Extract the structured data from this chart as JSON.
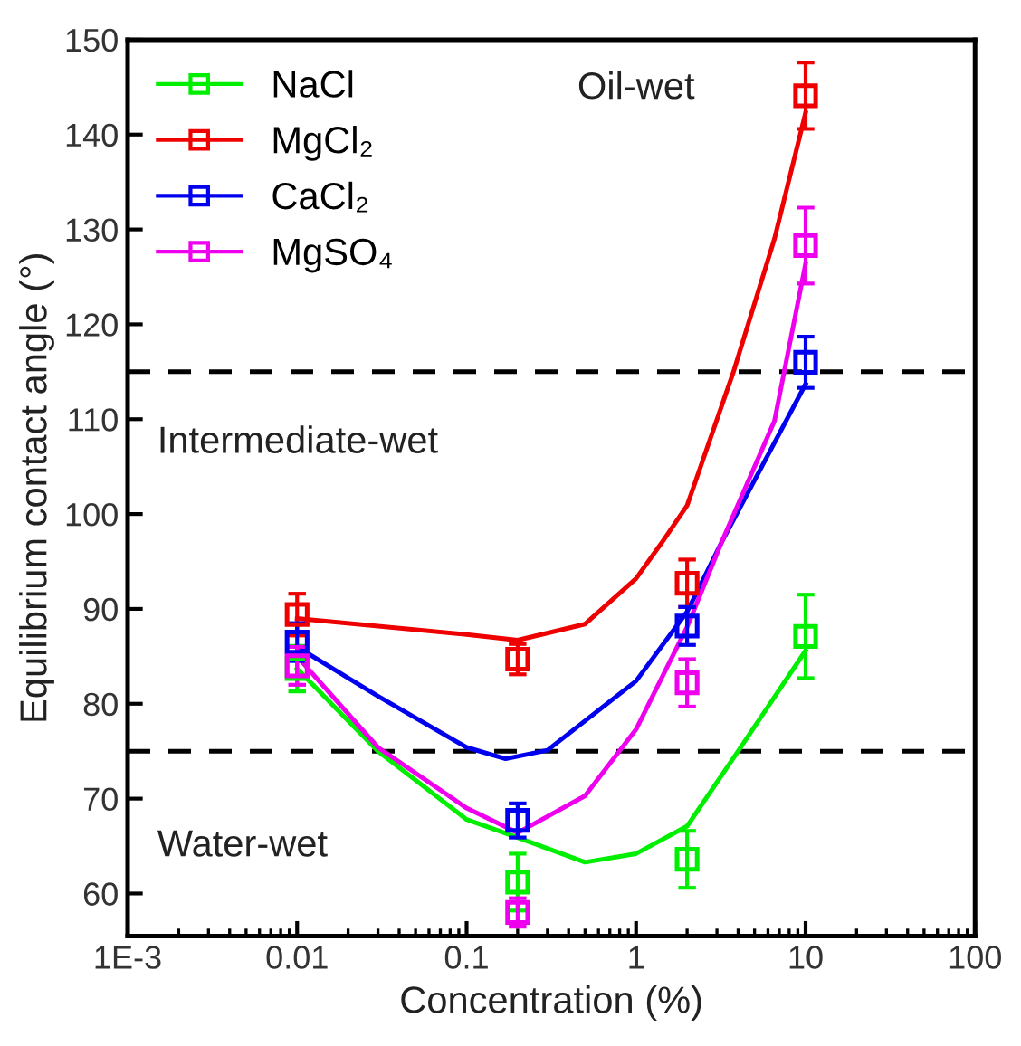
{
  "chart_data": {
    "type": "scatter",
    "xlabel": "Concentration (%)",
    "ylabel": "Equilibrium contact angle (°)",
    "log": "x",
    "xlim": [
      0.001,
      100
    ],
    "xticks": [
      {
        "value": 0.001,
        "label": "1E-3"
      },
      0.01,
      0.1,
      1,
      10,
      100
    ],
    "ylim": [
      55.5,
      150
    ],
    "yticks": [
      60,
      70,
      80,
      90,
      100,
      110,
      120,
      130,
      140,
      150
    ],
    "grid": false,
    "legend": "top left",
    "marker": "square",
    "annotations": [
      "Oil-wet",
      "Intermediate-wet",
      "Water-wet"
    ],
    "ref_lines": [
      {
        "axis": "y",
        "value": 115,
        "color": "#000000",
        "line_style": "dashed"
      },
      {
        "axis": "y",
        "value": 75,
        "color": "#000000",
        "line_style": "dashed"
      }
    ],
    "series": [
      {
        "name": "NaCl",
        "color": "#00ee00",
        "x": [
          0.01,
          0.2,
          2,
          10
        ],
        "values": [
          83.7,
          61.2,
          63.6,
          87.1
        ],
        "errors": [
          2.4,
          3,
          3,
          4.4
        ]
      },
      {
        "name": "MgCl₂",
        "color": "#ee0000",
        "x": [
          0.01,
          0.2,
          2,
          10
        ],
        "values": [
          89.4,
          84.7,
          92.7,
          144.1
        ],
        "errors": [
          2.2,
          1.6,
          2.5,
          3.5
        ]
      },
      {
        "name": "CaCl₂",
        "color": "#0000ee",
        "x": [
          0.01,
          0.2,
          2,
          10
        ],
        "values": [
          86.5,
          67.7,
          88.2,
          116
        ],
        "errors": [
          2,
          1.8,
          2,
          2.7
        ]
      },
      {
        "name": "MgSO₄",
        "color": "#ee00ee",
        "x": [
          0.01,
          0.2,
          2,
          10
        ],
        "values": [
          84,
          58,
          82.2,
          128.3
        ],
        "errors": [
          2,
          1.5,
          2.5,
          4
        ]
      },
      {
        "type": "line",
        "marker": "none",
        "color": "#00ee00",
        "x": [
          0.01,
          0.03,
          0.1,
          0.2,
          0.5,
          1,
          2,
          4,
          10
        ],
        "values": [
          83.7,
          75,
          67.8,
          65.9,
          63.3,
          64.2,
          67.1,
          75,
          85.6
        ]
      },
      {
        "type": "line",
        "marker": "none",
        "color": "#ee0000",
        "x": [
          0.01,
          0.1,
          0.2,
          0.5,
          1,
          1.42,
          2,
          3.74,
          6.55,
          10
        ],
        "values": [
          89,
          87.3,
          86.7,
          88.4,
          93.2,
          97,
          100.9,
          114.9,
          129,
          142.3
        ]
      },
      {
        "type": "line",
        "marker": "none",
        "color": "#0000ee",
        "x": [
          0.01,
          0.03,
          0.1,
          0.17,
          0.3,
          1,
          2,
          3.19,
          10
        ],
        "values": [
          86,
          80.8,
          75.4,
          74.2,
          75.1,
          82.4,
          89.7,
          97,
          113.7
        ]
      },
      {
        "type": "line",
        "marker": "none",
        "color": "#ee00ee",
        "x": [
          0.01,
          0.03,
          0.1,
          0.2,
          0.5,
          1,
          2,
          3.19,
          6.55,
          10
        ],
        "values": [
          85,
          75.4,
          69,
          66.4,
          70.3,
          77.3,
          88.1,
          97,
          109.8,
          126.4
        ]
      }
    ]
  }
}
